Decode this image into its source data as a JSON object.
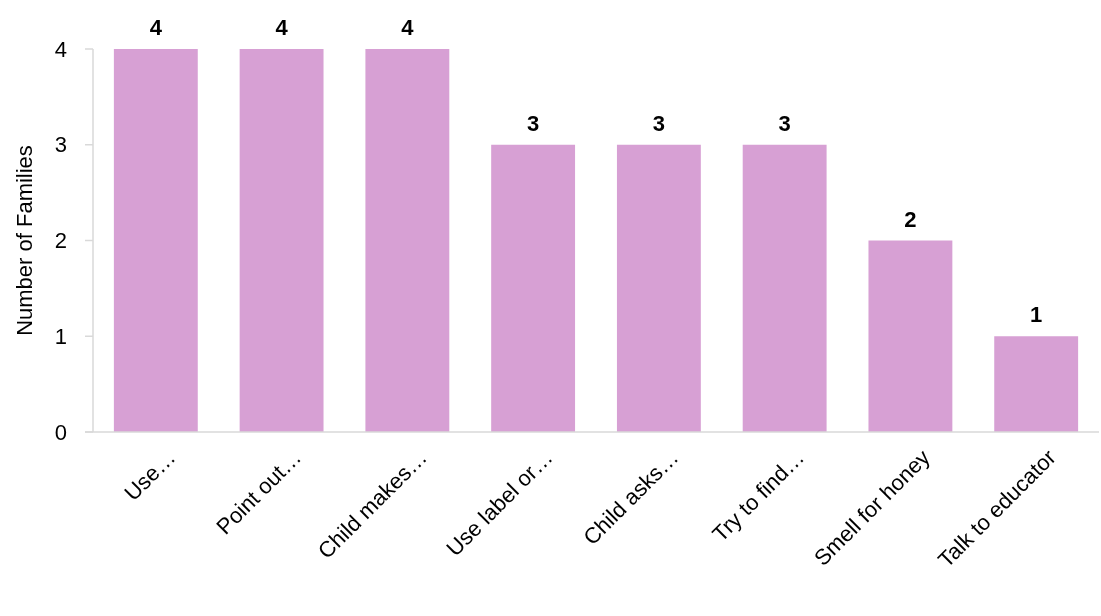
{
  "chart_data": {
    "type": "bar",
    "ylabel": "Number of Families",
    "categories": [
      "Use…",
      "Point out…",
      "Child makes…",
      "Use label or…",
      "Child asks…",
      "Try to find…",
      "Smell for honey",
      "Talk to educator"
    ],
    "values": [
      4,
      4,
      4,
      3,
      3,
      3,
      2,
      1
    ],
    "color": "#d7a0d4",
    "ylim": [
      0,
      4
    ],
    "yticks": [
      0,
      1,
      2,
      3,
      4
    ],
    "data_labels": true
  }
}
